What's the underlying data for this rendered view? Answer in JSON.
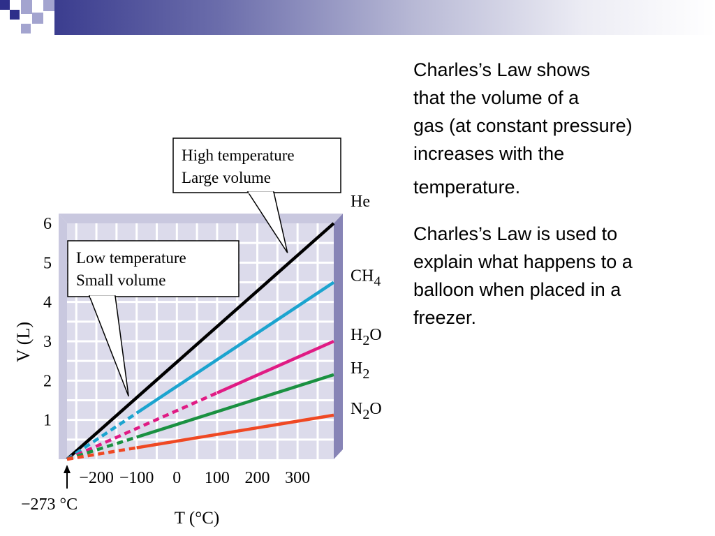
{
  "slide": {
    "paragraph1_lines": [
      "Charles’s Law shows",
      "that the volume of a",
      "gas (at constant pressure)",
      "increases with the",
      "temperature."
    ],
    "paragraph2_lines": [
      "Charles’s Law is used to",
      "explain what happens to a",
      "balloon when placed in a",
      "freezer."
    ]
  },
  "colors": {
    "panel": "#dcdbeb",
    "panel_side": "#8784b6",
    "grid": "#ffffff",
    "He": "#000000",
    "CH4": "#1ca4cf",
    "H2O": "#e01b84",
    "H2": "#1a9141",
    "N2O": "#ef4823",
    "header_dark": "#2e2f8a"
  },
  "chart_data": {
    "type": "line",
    "xlabel": "T (°C)",
    "ylabel": "V (L)",
    "xlim": [
      -273,
      390
    ],
    "ylim": [
      0,
      6
    ],
    "x_ticks": [
      -200,
      -100,
      0,
      100,
      200,
      300
    ],
    "x_tick_labels": [
      "−200",
      "−100",
      "0",
      "100",
      "200",
      "300"
    ],
    "y_ticks": [
      1,
      2,
      3,
      4,
      5,
      6
    ],
    "y_tick_labels": [
      "1",
      "2",
      "3",
      "4",
      "5",
      "6"
    ],
    "x_origin_label": "−273 °C",
    "series": [
      {
        "name": "He",
        "label_base": "He",
        "label_sub": "",
        "label_tail": "",
        "values": [
          [
            -273,
            0
          ],
          [
            390,
            6
          ]
        ],
        "solid_from": -273
      },
      {
        "name": "CH4",
        "label_base": "CH",
        "label_sub": "4",
        "label_tail": "",
        "values": [
          [
            -273,
            0
          ],
          [
            390,
            4.5
          ]
        ],
        "solid_from": -100
      },
      {
        "name": "H2O",
        "label_base": "H",
        "label_sub": "2",
        "label_tail": "O",
        "values": [
          [
            -273,
            0
          ],
          [
            390,
            3.0
          ]
        ],
        "solid_from": 100
      },
      {
        "name": "H2",
        "label_base": "H",
        "label_sub": "2",
        "label_tail": "",
        "values": [
          [
            -273,
            0
          ],
          [
            390,
            2.15
          ]
        ],
        "solid_from": -100
      },
      {
        "name": "N2O",
        "label_base": "N",
        "label_sub": "2",
        "label_tail": "O",
        "values": [
          [
            -273,
            0
          ],
          [
            390,
            1.12
          ]
        ],
        "solid_from": -100
      }
    ],
    "annotations": [
      {
        "name": "high",
        "lines": [
          "High temperature",
          "Large volume"
        ],
        "target": [
          275,
          5.25
        ]
      },
      {
        "name": "low",
        "lines": [
          "Low temperature",
          "Small volume"
        ],
        "target": [
          -120,
          1.6
        ]
      }
    ]
  }
}
